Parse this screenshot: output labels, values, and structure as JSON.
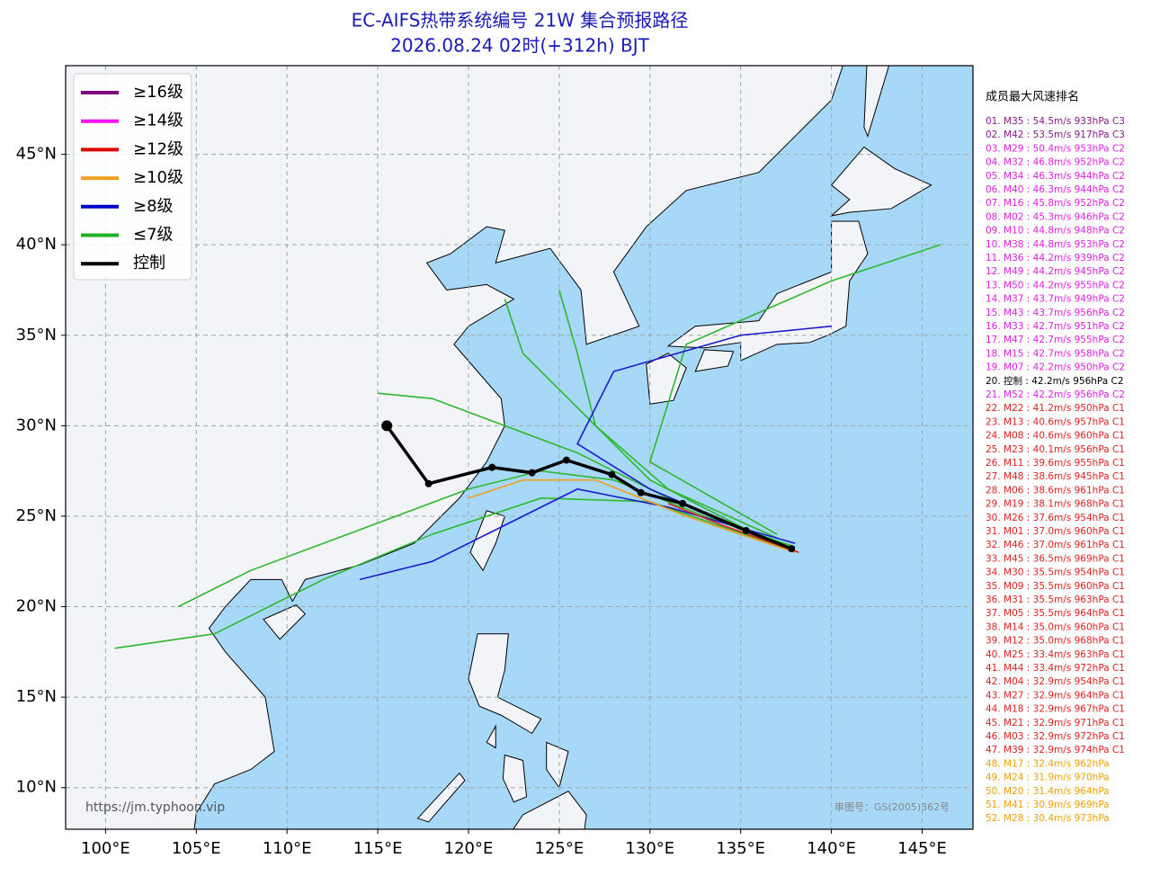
{
  "chart_data": {
    "type": "map",
    "title": "EC-AIFS热带系统编号 21W 集合预报路径",
    "subtitle": "2026.08.24 02时(+312h) BJT",
    "xlim": [
      97.8,
      147.8
    ],
    "ylim": [
      7.7,
      49.9
    ],
    "xticks": [
      {
        "value": 100,
        "label": "100°E"
      },
      {
        "value": 105,
        "label": "105°E"
      },
      {
        "value": 110,
        "label": "110°E"
      },
      {
        "value": 115,
        "label": "115°E"
      },
      {
        "value": 120,
        "label": "120°E"
      },
      {
        "value": 125,
        "label": "125°E"
      },
      {
        "value": 130,
        "label": "130°E"
      },
      {
        "value": 135,
        "label": "135°E"
      },
      {
        "value": 140,
        "label": "140°E"
      },
      {
        "value": 145,
        "label": "145°E"
      }
    ],
    "yticks": [
      {
        "value": 10,
        "label": "10°N"
      },
      {
        "value": 15,
        "label": "15°N"
      },
      {
        "value": 20,
        "label": "20°N"
      },
      {
        "value": 25,
        "label": "25°N"
      },
      {
        "value": 30,
        "label": "30°N"
      },
      {
        "value": 35,
        "label": "35°N"
      },
      {
        "value": 40,
        "label": "40°N"
      },
      {
        "value": 45,
        "label": "45°N"
      }
    ],
    "grid": true,
    "legend": {
      "position": "upper left",
      "items": [
        {
          "name": "≥16级",
          "color": "#800080"
        },
        {
          "name": "≥14级",
          "color": "#ff10ff"
        },
        {
          "name": "≥12级",
          "color": "#e00000"
        },
        {
          "name": "≥10级",
          "color": "#f0a020"
        },
        {
          "name": "≥8级",
          "color": "#0000cc"
        },
        {
          "name": "≤7级",
          "color": "#20b020"
        },
        {
          "name": "控制",
          "color": "#000000"
        }
      ]
    },
    "tracks": [
      {
        "color": "#2db82d",
        "lon": [
          138,
          133,
          128,
          124,
          120,
          116,
          112,
          108,
          104
        ],
        "lat": [
          23.3,
          25,
          27,
          27.5,
          26.5,
          25,
          23.5,
          22,
          20
        ]
      },
      {
        "color": "#2db82d",
        "lon": [
          137,
          131,
          126,
          122,
          118,
          115
        ],
        "lat": [
          23.5,
          26,
          28.5,
          30,
          31.5,
          31.8
        ]
      },
      {
        "color": "#2db82d",
        "lon": [
          137,
          130,
          127,
          126,
          125
        ],
        "lat": [
          23.4,
          27,
          30,
          34,
          37.5
        ]
      },
      {
        "color": "#2db82d",
        "lon": [
          137,
          130,
          132,
          140,
          146
        ],
        "lat": [
          24,
          28,
          34.5,
          38,
          40
        ]
      },
      {
        "color": "#2db82d",
        "lon": [
          137,
          131,
          127,
          123,
          122
        ],
        "lat": [
          23.8,
          26.5,
          30,
          34,
          37
        ]
      },
      {
        "color": "#2db82d",
        "lon": [
          137.5,
          130,
          124,
          118,
          112,
          106,
          100.5
        ],
        "lat": [
          23.2,
          25.8,
          26,
          24,
          21.5,
          18.5,
          17.7
        ]
      },
      {
        "color": "#1a1acc",
        "lon": [
          137.5,
          130,
          126,
          128,
          135,
          140
        ],
        "lat": [
          23.3,
          26.5,
          29,
          33,
          35,
          35.5
        ]
      },
      {
        "color": "#1a1acc",
        "lon": [
          138,
          131,
          126,
          122,
          118,
          114
        ],
        "lat": [
          23.5,
          25.5,
          26.5,
          24.5,
          22.5,
          21.5
        ]
      },
      {
        "color": "#f0a020",
        "lon": [
          138,
          132,
          127,
          123,
          120
        ],
        "lat": [
          23,
          25,
          27,
          27,
          26
        ]
      },
      {
        "color": "#e02020",
        "lon": [
          138.2,
          134,
          131
        ],
        "lat": [
          23,
          24.5,
          25.7
        ]
      }
    ],
    "control_track": {
      "color": "#000000",
      "lon": [
        115.5,
        117.8,
        121.3,
        123.5,
        125.4,
        127.9,
        129.5,
        131.8,
        135.3,
        137.8
      ],
      "lat": [
        30.0,
        26.8,
        27.7,
        27.4,
        28.1,
        27.3,
        26.3,
        25.7,
        24.2,
        23.2
      ]
    },
    "ranking": {
      "title": "成员最大风速排名",
      "items": [
        {
          "text": "01. M35 : 54.5m/s 933hPa C3",
          "color": "#8b1a8b"
        },
        {
          "text": "02. M42 : 53.5m/s 917hPa C3",
          "color": "#8b1a8b"
        },
        {
          "text": "03. M29 : 50.4m/s 953hPa C2",
          "color": "#e020e0"
        },
        {
          "text": "04. M32 : 46.8m/s 952hPa C2",
          "color": "#e020e0"
        },
        {
          "text": "05. M34 : 46.3m/s 944hPa C2",
          "color": "#e020e0"
        },
        {
          "text": "06. M40 : 46.3m/s 944hPa C2",
          "color": "#e020e0"
        },
        {
          "text": "07. M16 : 45.8m/s 952hPa C2",
          "color": "#e020e0"
        },
        {
          "text": "08. M02 : 45.3m/s 946hPa C2",
          "color": "#e020e0"
        },
        {
          "text": "09. M10 : 44.8m/s 948hPa C2",
          "color": "#e020e0"
        },
        {
          "text": "10. M38 : 44.8m/s 953hPa C2",
          "color": "#e020e0"
        },
        {
          "text": "11. M36 : 44.2m/s 939hPa C2",
          "color": "#e020e0"
        },
        {
          "text": "12. M49 : 44.2m/s 945hPa C2",
          "color": "#e020e0"
        },
        {
          "text": "13. M50 : 44.2m/s 955hPa C2",
          "color": "#e020e0"
        },
        {
          "text": "14. M37 : 43.7m/s 949hPa C2",
          "color": "#e020e0"
        },
        {
          "text": "15. M43 : 43.7m/s 956hPa C2",
          "color": "#e020e0"
        },
        {
          "text": "16. M33 : 42.7m/s 951hPa C2",
          "color": "#e020e0"
        },
        {
          "text": "17. M47 : 42.7m/s 955hPa C2",
          "color": "#e020e0"
        },
        {
          "text": "18. M15 : 42.7m/s 958hPa C2",
          "color": "#e020e0"
        },
        {
          "text": "19. M07 : 42.2m/s 950hPa C2",
          "color": "#e020e0"
        },
        {
          "text": "20. 控制 : 42.2m/s 956hPa C2",
          "color": "#000000"
        },
        {
          "text": "21. M52 : 42.2m/s 956hPa C2",
          "color": "#e020e0"
        },
        {
          "text": "22. M22 : 41.2m/s 950hPa C1",
          "color": "#e02020"
        },
        {
          "text": "23. M13 : 40.6m/s 957hPa C1",
          "color": "#e02020"
        },
        {
          "text": "24. M08 : 40.6m/s 960hPa C1",
          "color": "#e02020"
        },
        {
          "text": "25. M23 : 40.1m/s 956hPa C1",
          "color": "#e02020"
        },
        {
          "text": "26. M11 : 39.6m/s 955hPa C1",
          "color": "#e02020"
        },
        {
          "text": "27. M48 : 38.6m/s 945hPa C1",
          "color": "#e02020"
        },
        {
          "text": "28. M06 : 38.6m/s 961hPa C1",
          "color": "#e02020"
        },
        {
          "text": "29. M19 : 38.1m/s 968hPa C1",
          "color": "#e02020"
        },
        {
          "text": "30. M26 : 37.6m/s 954hPa C1",
          "color": "#e02020"
        },
        {
          "text": "31. M01 : 37.0m/s 960hPa C1",
          "color": "#e02020"
        },
        {
          "text": "32. M46 : 37.0m/s 961hPa C1",
          "color": "#e02020"
        },
        {
          "text": "33. M45 : 36.5m/s 969hPa C1",
          "color": "#e02020"
        },
        {
          "text": "34. M30 : 35.5m/s 954hPa C1",
          "color": "#e02020"
        },
        {
          "text": "35. M09 : 35.5m/s 960hPa C1",
          "color": "#e02020"
        },
        {
          "text": "36. M31 : 35.5m/s 963hPa C1",
          "color": "#e02020"
        },
        {
          "text": "37. M05 : 35.5m/s 964hPa C1",
          "color": "#e02020"
        },
        {
          "text": "38. M14 : 35.0m/s 960hPa C1",
          "color": "#e02020"
        },
        {
          "text": "39. M12 : 35.0m/s 968hPa C1",
          "color": "#e02020"
        },
        {
          "text": "40. M25 : 33.4m/s 963hPa C1",
          "color": "#e02020"
        },
        {
          "text": "41. M44 : 33.4m/s 972hPa C1",
          "color": "#e02020"
        },
        {
          "text": "42. M04 : 32.9m/s 954hPa C1",
          "color": "#e02020"
        },
        {
          "text": "43. M27 : 32.9m/s 964hPa C1",
          "color": "#e02020"
        },
        {
          "text": "44. M18 : 32.9m/s 967hPa C1",
          "color": "#e02020"
        },
        {
          "text": "45. M21 : 32.9m/s 971hPa C1",
          "color": "#e02020"
        },
        {
          "text": "46. M03 : 32.9m/s 972hPa C1",
          "color": "#e02020"
        },
        {
          "text": "47. M39 : 32.9m/s 974hPa C1",
          "color": "#e02020"
        },
        {
          "text": "48. M17 : 32.4m/s 962hPa",
          "color": "#f0a000"
        },
        {
          "text": "49. M24 : 31.9m/s 970hPa",
          "color": "#f0a000"
        },
        {
          "text": "50. M20 : 31.4m/s 964hPa",
          "color": "#f0a000"
        },
        {
          "text": "51. M41 : 30.9m/s 969hPa",
          "color": "#f0a000"
        },
        {
          "text": "52. M28 : 30.4m/s 973hPa",
          "color": "#f0a000"
        }
      ]
    },
    "source": "https://jm.typhoon.vip",
    "approval": "审图号：GS(2005)362号"
  }
}
